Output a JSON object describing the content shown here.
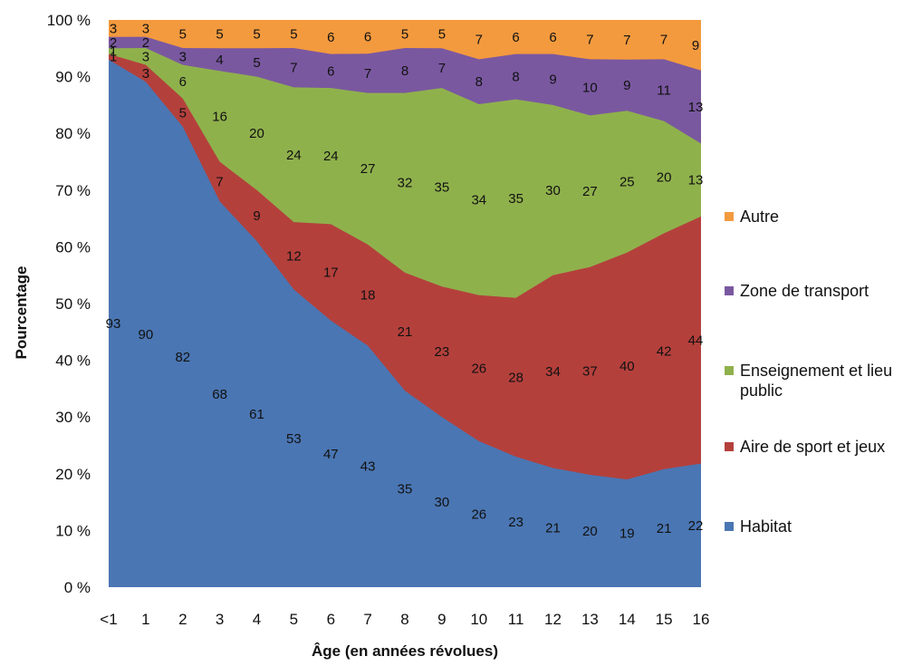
{
  "chart_data": {
    "type": "area",
    "stacked": true,
    "xlabel": "Âge (en années révolues)",
    "ylabel": "Pourcentage",
    "categories": [
      "<1",
      "1",
      "2",
      "3",
      "4",
      "5",
      "6",
      "7",
      "8",
      "9",
      "10",
      "11",
      "12",
      "13",
      "14",
      "15",
      "16"
    ],
    "y_ticks": [
      "0 %",
      "10 %",
      "20 %",
      "30 %",
      "40 %",
      "50 %",
      "60 %",
      "70 %",
      "80 %",
      "90 %",
      "100 %"
    ],
    "ylim": [
      0,
      100
    ],
    "grid": false,
    "legend_position": "right",
    "series": [
      {
        "name": "Habitat",
        "color": "#4a76b3",
        "values": [
          93,
          90,
          82,
          68,
          61,
          53,
          47,
          43,
          35,
          30,
          26,
          23,
          21,
          20,
          19,
          21,
          22
        ]
      },
      {
        "name": "Aire de sport et jeux",
        "color": "#b4403c",
        "values": [
          1,
          3,
          5,
          7,
          9,
          12,
          17,
          18,
          21,
          23,
          26,
          28,
          34,
          37,
          40,
          42,
          44
        ]
      },
      {
        "name": "Enseignement et lieu public",
        "color": "#8fb14c",
        "values": [
          1,
          3,
          6,
          16,
          20,
          24,
          24,
          27,
          32,
          35,
          34,
          35,
          30,
          27,
          25,
          20,
          13
        ]
      },
      {
        "name": "Zone de transport",
        "color": "#7a58a0",
        "values": [
          2,
          2,
          3,
          4,
          5,
          7,
          6,
          7,
          8,
          7,
          8,
          8,
          9,
          10,
          9,
          11,
          13
        ]
      },
      {
        "name": "Autre",
        "color": "#f39a3e",
        "values": [
          3,
          3,
          5,
          5,
          5,
          5,
          6,
          6,
          5,
          5,
          7,
          6,
          6,
          7,
          7,
          7,
          9
        ]
      }
    ]
  },
  "legend": {
    "items": [
      {
        "label": "Autre",
        "color": "#f39a3e"
      },
      {
        "label": "Zone de transport",
        "color": "#7a58a0"
      },
      {
        "label": "Enseignement et lieu public",
        "color": "#8fb14c"
      },
      {
        "label": "Aire de sport et jeux",
        "color": "#b4403c"
      },
      {
        "label": "Habitat",
        "color": "#4a76b3"
      }
    ]
  }
}
